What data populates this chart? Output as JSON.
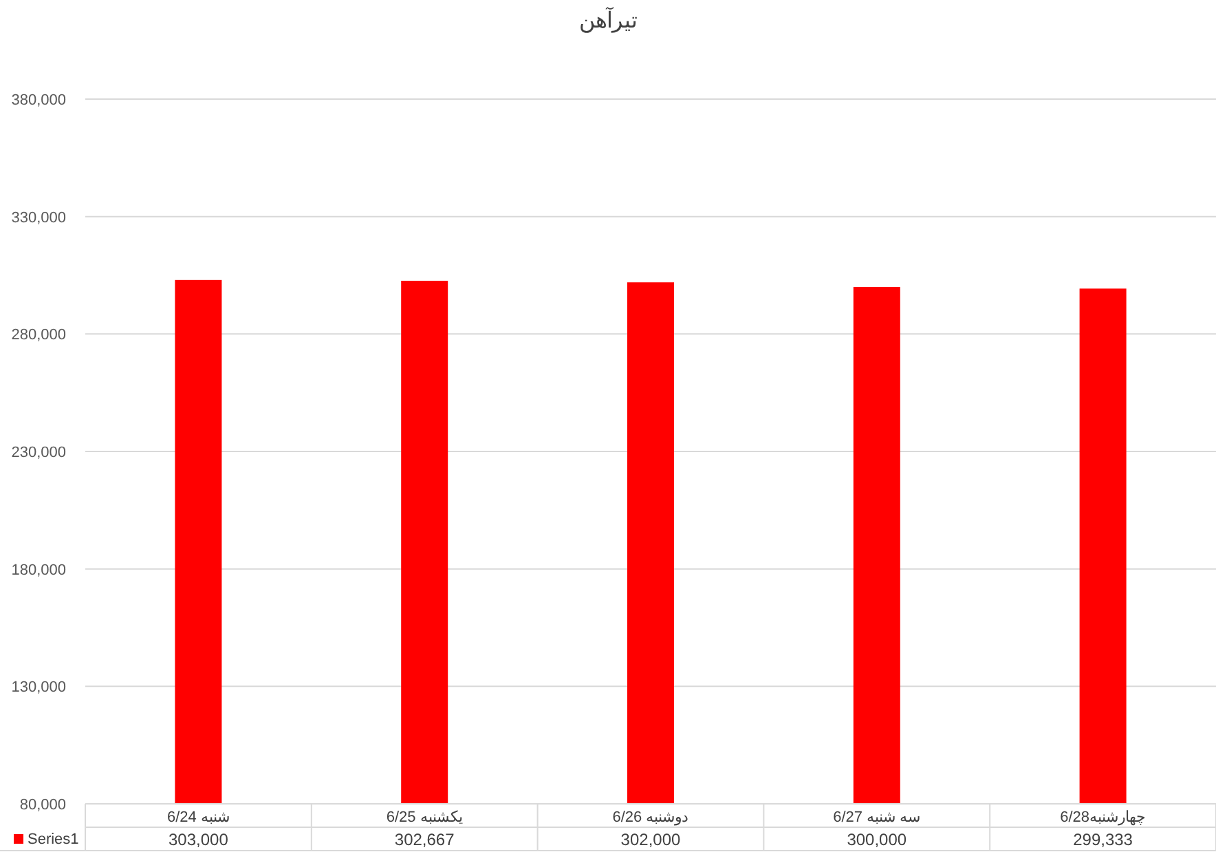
{
  "chart_data": {
    "type": "bar",
    "title": "تیرآهن",
    "categories": [
      "شنبه 6/24",
      "یکشنبه 6/25",
      "دوشنبه 6/26",
      "سه شنبه 6/27",
      "چهارشنبه6/28"
    ],
    "series": [
      {
        "name": "Series1",
        "color": "#ff0000",
        "values": [
          303000,
          302667,
          302000,
          300000,
          299333
        ],
        "value_labels": [
          "303,000",
          "302,667",
          "302,000",
          "300,000",
          "299,333"
        ]
      }
    ],
    "ylim": [
      80000,
      380000
    ],
    "yticks": [
      {
        "value": 80000,
        "label": "80,000"
      },
      {
        "value": 130000,
        "label": "130,000"
      },
      {
        "value": 180000,
        "label": "180,000"
      },
      {
        "value": 230000,
        "label": "230,000"
      },
      {
        "value": 280000,
        "label": "280,000"
      },
      {
        "value": 330000,
        "label": "330,000"
      },
      {
        "value": 380000,
        "label": "380,000"
      }
    ],
    "grid": "y",
    "legend": "bottom"
  }
}
